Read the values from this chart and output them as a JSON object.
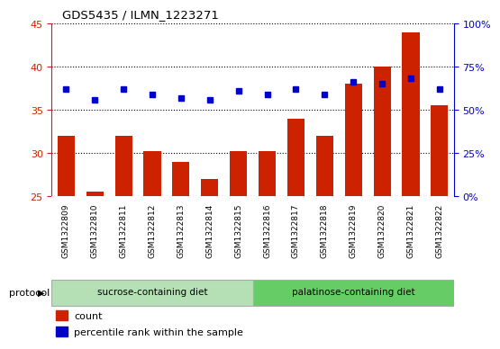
{
  "title": "GDS5435 / ILMN_1223271",
  "samples": [
    "GSM1322809",
    "GSM1322810",
    "GSM1322811",
    "GSM1322812",
    "GSM1322813",
    "GSM1322814",
    "GSM1322815",
    "GSM1322816",
    "GSM1322817",
    "GSM1322818",
    "GSM1322819",
    "GSM1322820",
    "GSM1322821",
    "GSM1322822"
  ],
  "counts": [
    32.0,
    25.5,
    32.0,
    30.2,
    29.0,
    27.0,
    30.2,
    30.2,
    34.0,
    32.0,
    38.0,
    40.0,
    44.0,
    35.5
  ],
  "percentiles_pct": [
    62,
    56,
    62,
    59,
    57,
    56,
    61,
    59,
    62,
    59,
    66,
    65,
    68,
    62
  ],
  "bar_color": "#cc2200",
  "dot_color": "#0000cc",
  "ylim_left": [
    25,
    45
  ],
  "yticks_left": [
    25,
    30,
    35,
    40,
    45
  ],
  "ylim_right": [
    0,
    100
  ],
  "yticks_right": [
    0,
    25,
    50,
    75,
    100
  ],
  "n_sucrose": 7,
  "n_palatinose": 7,
  "sucrose_label": "sucrose-containing diet",
  "palatinose_label": "palatinose-containing diet",
  "protocol_label": "protocol",
  "legend_count_label": "count",
  "legend_percentile_label": "percentile rank within the sample",
  "bar_width": 0.6,
  "plot_bg": "#ffffff",
  "gray_cell_bg": "#d3d3d3",
  "sucrose_color": "#b5e0b5",
  "palatinose_color": "#66cc66"
}
